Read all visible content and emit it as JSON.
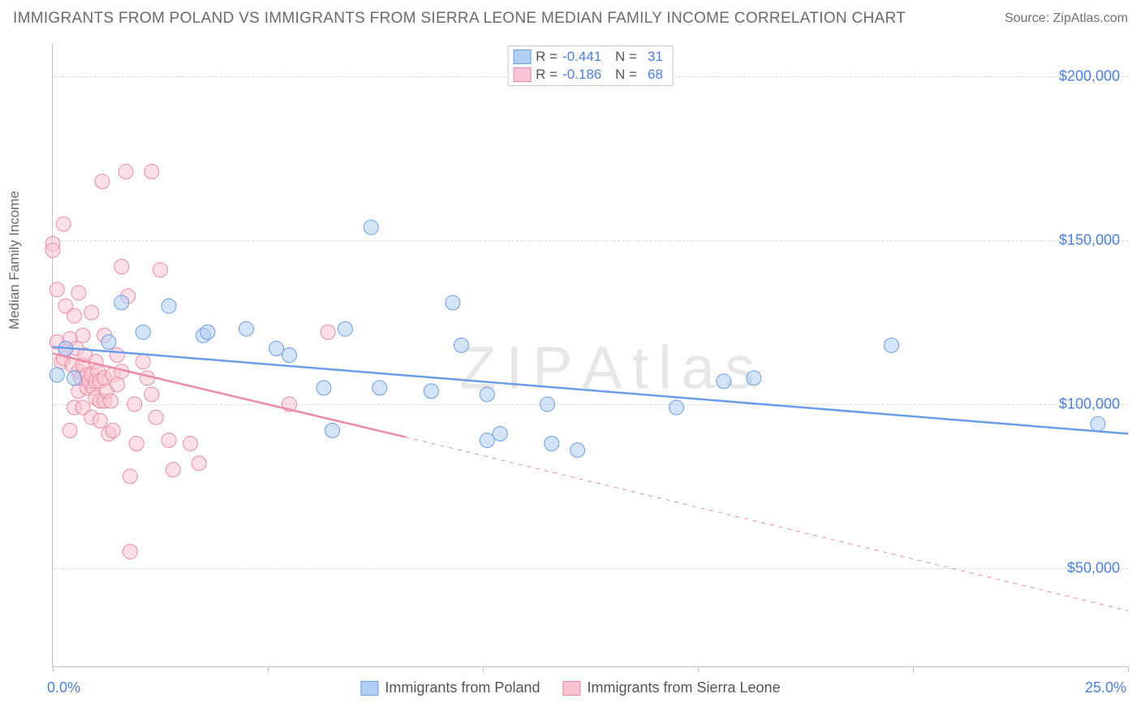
{
  "header": {
    "title": "IMMIGRANTS FROM POLAND VS IMMIGRANTS FROM SIERRA LEONE MEDIAN FAMILY INCOME CORRELATION CHART",
    "source": "Source: ZipAtlas.com"
  },
  "watermark": {
    "zip": "ZIP",
    "atlas": "Atlas"
  },
  "chart": {
    "type": "scatter",
    "y_axis_label": "Median Family Income",
    "colors": {
      "series1_fill": "#b1cef3",
      "series1_stroke": "#6a9de8",
      "series2_fill": "#f9c5d3",
      "series2_stroke": "#ed8aa6",
      "text_axis": "#4a7fe0",
      "text_label": "#6a6a6a",
      "grid": "#d8d8d8",
      "axis_border": "#c0c0c0",
      "background": "#ffffff"
    },
    "x": {
      "min": 0,
      "max": 25,
      "ticks": [
        0,
        5,
        10,
        15,
        20,
        25
      ],
      "label_min": "0.0%",
      "label_max": "25.0%"
    },
    "y": {
      "min": 20000,
      "max": 210000,
      "grid": [
        50000,
        100000,
        150000,
        200000
      ],
      "labels": {
        "50000": "$50,000",
        "100000": "$100,000",
        "150000": "$150,000",
        "200000": "$200,000"
      }
    },
    "marker_radius": 9,
    "marker_fill_opacity": 0.55,
    "line_width_solid": 2.5,
    "line_width_dash": 1,
    "legend_top": {
      "rows": [
        {
          "swatch_series": 1,
          "r_label": "R =",
          "r_val": "-0.441",
          "n_label": "N =",
          "n_val": "31"
        },
        {
          "swatch_series": 2,
          "r_label": "R =",
          "r_val": "-0.186",
          "n_label": "N =",
          "n_val": "68"
        }
      ]
    },
    "legend_bottom": [
      {
        "series": 1,
        "label": "Immigrants from Poland"
      },
      {
        "series": 2,
        "label": "Immigrants from Sierra Leone"
      }
    ],
    "trend_lines": {
      "series1": {
        "x1": 0,
        "y1": 117500,
        "x2_solid": 25,
        "y2_solid": 91000
      },
      "series2": {
        "x1": 0,
        "y1": 115500,
        "x_solid_end": 8.2,
        "y_solid_end": 90000,
        "x2_dash": 25,
        "y2_dash": 37000
      }
    },
    "series1": {
      "name": "Immigrants from Poland",
      "points": [
        [
          0.1,
          109000
        ],
        [
          0.3,
          117000
        ],
        [
          0.5,
          108000
        ],
        [
          1.3,
          119000
        ],
        [
          1.6,
          131000
        ],
        [
          2.1,
          122000
        ],
        [
          2.7,
          130000
        ],
        [
          3.5,
          121000
        ],
        [
          3.6,
          122000
        ],
        [
          4.5,
          123000
        ],
        [
          5.2,
          117000
        ],
        [
          5.5,
          115000
        ],
        [
          6.3,
          105000
        ],
        [
          6.5,
          92000
        ],
        [
          6.8,
          123000
        ],
        [
          7.4,
          154000
        ],
        [
          7.6,
          105000
        ],
        [
          8.8,
          104000
        ],
        [
          9.3,
          131000
        ],
        [
          9.5,
          118000
        ],
        [
          10.1,
          89000
        ],
        [
          10.1,
          103000
        ],
        [
          10.4,
          91000
        ],
        [
          11.5,
          100000
        ],
        [
          11.6,
          88000
        ],
        [
          12.2,
          86000
        ],
        [
          14.5,
          99000
        ],
        [
          15.6,
          107000
        ],
        [
          16.3,
          108000
        ],
        [
          19.5,
          118000
        ],
        [
          24.3,
          94000
        ]
      ]
    },
    "series2": {
      "name": "Immigrants from Sierra Leone",
      "points": [
        [
          0.0,
          149000
        ],
        [
          0.0,
          147000
        ],
        [
          0.1,
          135000
        ],
        [
          0.1,
          119000
        ],
        [
          0.2,
          113000
        ],
        [
          0.25,
          114000
        ],
        [
          0.25,
          155000
        ],
        [
          0.3,
          117000
        ],
        [
          0.3,
          130000
        ],
        [
          0.4,
          120000
        ],
        [
          0.4,
          92000
        ],
        [
          0.45,
          112000
        ],
        [
          0.5,
          127000
        ],
        [
          0.5,
          99000
        ],
        [
          0.55,
          117000
        ],
        [
          0.6,
          110000
        ],
        [
          0.6,
          134000
        ],
        [
          0.6,
          104000
        ],
        [
          0.65,
          108000
        ],
        [
          0.7,
          121000
        ],
        [
          0.7,
          112000
        ],
        [
          0.7,
          99000
        ],
        [
          0.75,
          115000
        ],
        [
          0.8,
          105000
        ],
        [
          0.8,
          109000
        ],
        [
          0.85,
          107000
        ],
        [
          0.9,
          109000
        ],
        [
          0.9,
          128000
        ],
        [
          0.9,
          96000
        ],
        [
          0.95,
          105000
        ],
        [
          1.0,
          113000
        ],
        [
          1.0,
          107000
        ],
        [
          1.0,
          102000
        ],
        [
          1.05,
          110000
        ],
        [
          1.1,
          107000
        ],
        [
          1.1,
          101000
        ],
        [
          1.1,
          95000
        ],
        [
          1.15,
          168000
        ],
        [
          1.2,
          121000
        ],
        [
          1.2,
          108000
        ],
        [
          1.2,
          101000
        ],
        [
          1.25,
          104000
        ],
        [
          1.3,
          91000
        ],
        [
          1.35,
          101000
        ],
        [
          1.4,
          92000
        ],
        [
          1.4,
          109000
        ],
        [
          1.5,
          106000
        ],
        [
          1.5,
          115000
        ],
        [
          1.6,
          110000
        ],
        [
          1.6,
          142000
        ],
        [
          1.7,
          171000
        ],
        [
          1.75,
          133000
        ],
        [
          1.8,
          55000
        ],
        [
          1.8,
          78000
        ],
        [
          1.9,
          100000
        ],
        [
          1.95,
          88000
        ],
        [
          2.1,
          113000
        ],
        [
          2.2,
          108000
        ],
        [
          2.3,
          171000
        ],
        [
          2.3,
          103000
        ],
        [
          2.4,
          96000
        ],
        [
          2.5,
          141000
        ],
        [
          2.7,
          89000
        ],
        [
          2.8,
          80000
        ],
        [
          3.2,
          88000
        ],
        [
          3.4,
          82000
        ],
        [
          5.5,
          100000
        ],
        [
          6.4,
          122000
        ]
      ]
    }
  }
}
